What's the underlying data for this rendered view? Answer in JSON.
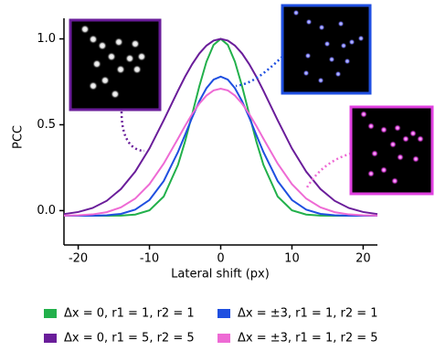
{
  "chart_data": {
    "type": "line",
    "x_label": "Lateral shift (px)",
    "y_label": "PCC",
    "x": [
      -22,
      -20,
      -18,
      -16,
      -14,
      -12,
      -10,
      -8,
      -6,
      -5,
      -4,
      -3,
      -2,
      -1,
      0,
      1,
      2,
      3,
      4,
      5,
      6,
      8,
      10,
      12,
      14,
      16,
      18,
      20,
      22
    ],
    "series": [
      {
        "name": "Δx = 0, r1 = 1, r2 = 1",
        "color": "#22b04b",
        "values": [
          -0.03,
          -0.03,
          -0.03,
          -0.03,
          -0.029,
          -0.023,
          0.002,
          0.082,
          0.266,
          0.403,
          0.562,
          0.724,
          0.867,
          0.965,
          1.0,
          0.965,
          0.867,
          0.724,
          0.562,
          0.403,
          0.266,
          0.082,
          0.002,
          -0.023,
          -0.029,
          -0.03,
          -0.03,
          -0.03,
          -0.03
        ]
      },
      {
        "name": "Δx = ±3, r1 = 1, r2 = 1",
        "color": "#1f4fe0",
        "values": [
          -0.03,
          -0.03,
          -0.03,
          -0.027,
          -0.019,
          0.006,
          0.062,
          0.172,
          0.341,
          0.441,
          0.543,
          0.637,
          0.713,
          0.763,
          0.78,
          0.763,
          0.713,
          0.637,
          0.543,
          0.441,
          0.341,
          0.172,
          0.062,
          0.006,
          -0.019,
          -0.027,
          -0.03,
          -0.03,
          -0.03
        ]
      },
      {
        "name": "Δx = 0, r1 = 5, r2 = 5",
        "color": "#6a1d9a",
        "values": [
          -0.02,
          -0.008,
          0.015,
          0.057,
          0.126,
          0.227,
          0.362,
          0.526,
          0.698,
          0.78,
          0.853,
          0.915,
          0.961,
          0.99,
          1.0,
          0.99,
          0.961,
          0.915,
          0.853,
          0.78,
          0.698,
          0.526,
          0.362,
          0.227,
          0.126,
          0.057,
          0.015,
          -0.008,
          -0.02
        ]
      },
      {
        "name": "Δx = ±3, r1 = 1, r2 = 5",
        "color": "#ee6ad4",
        "values": [
          -0.029,
          -0.027,
          -0.022,
          -0.009,
          0.019,
          0.07,
          0.154,
          0.274,
          0.419,
          0.493,
          0.563,
          0.623,
          0.67,
          0.7,
          0.71,
          0.7,
          0.67,
          0.623,
          0.563,
          0.493,
          0.419,
          0.274,
          0.154,
          0.07,
          0.019,
          -0.009,
          -0.022,
          -0.027,
          -0.029
        ]
      }
    ],
    "xlim": [
      -22,
      22
    ],
    "ylim": [
      -0.2,
      1.12
    ],
    "xticks": [
      -20,
      -10,
      0,
      10,
      20
    ],
    "yticks": [
      {
        "value": 0,
        "label": "0.0"
      },
      {
        "value": 0.5,
        "label": "0.5"
      },
      {
        "value": 1,
        "label": "1.0"
      }
    ]
  }
}
